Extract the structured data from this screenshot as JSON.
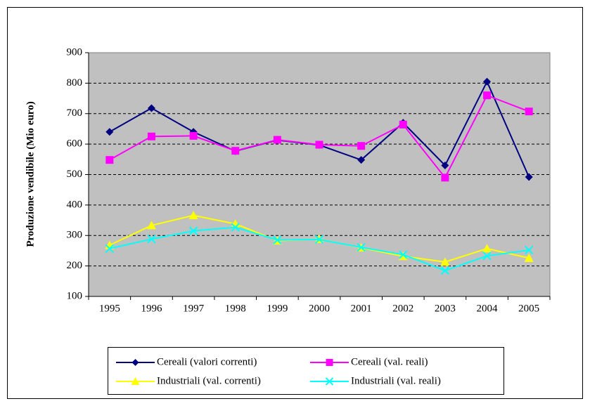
{
  "chart_data": {
    "type": "line",
    "y_label": "Produzione vendibile (Mio euro)",
    "categories": [
      "1995",
      "1996",
      "1997",
      "1998",
      "1999",
      "2000",
      "2001",
      "2002",
      "2003",
      "2004",
      "2005"
    ],
    "series": [
      {
        "name": "Cereali (valori correnti)",
        "color": "#000080",
        "marker": "diamond",
        "values": [
          640,
          718,
          640,
          577,
          613,
          597,
          548,
          670,
          530,
          805,
          492
        ]
      },
      {
        "name": "Cereali (val. reali)",
        "color": "#ff00ff",
        "marker": "square",
        "values": [
          548,
          625,
          627,
          578,
          614,
          598,
          594,
          664,
          490,
          760,
          707
        ]
      },
      {
        "name": "Industriali (val. correnti)",
        "color": "#ffff00",
        "marker": "triangle",
        "values": [
          268,
          333,
          366,
          338,
          283,
          288,
          260,
          232,
          213,
          257,
          226
        ]
      },
      {
        "name": "Industriali (val. reali)",
        "color": "#00ffff",
        "marker": "cross",
        "values": [
          257,
          288,
          315,
          327,
          285,
          287,
          261,
          237,
          185,
          233,
          252
        ]
      }
    ],
    "ylim": [
      100,
      900
    ],
    "yticks": [
      100,
      200,
      300,
      400,
      500,
      600,
      700,
      800,
      900
    ],
    "grid": true,
    "legend": "bottom",
    "plot_background": "#c0c0c0"
  }
}
